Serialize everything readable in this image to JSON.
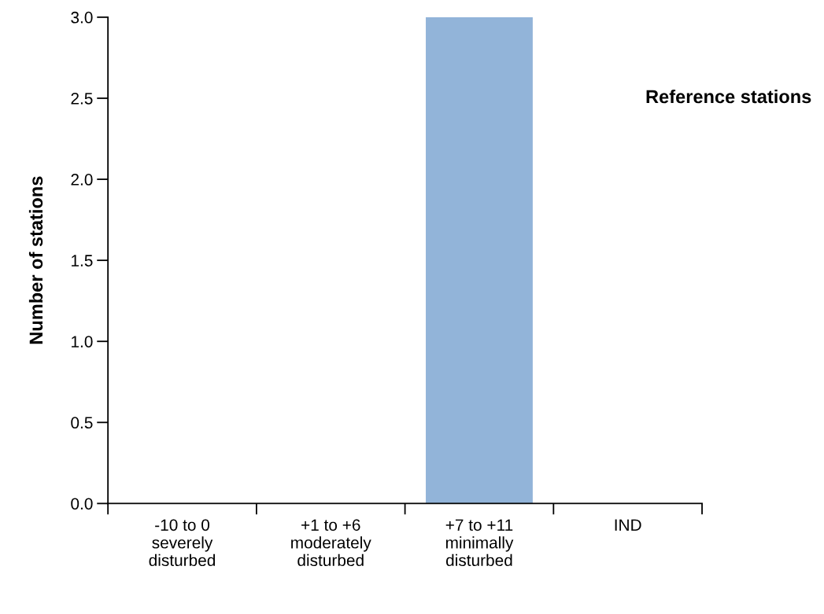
{
  "chart_data": {
    "type": "bar",
    "categories": [
      "-10 to 0\nseverely\ndisturbed",
      "+1 to +6\nmoderately\ndisturbed",
      "+7 to +11\nminimally\ndisturbed",
      "IND"
    ],
    "values": [
      0,
      0,
      3,
      0
    ],
    "color": "#92b4d9",
    "ylabel": "Number of stations",
    "ylim": [
      0,
      3
    ],
    "yticks": [
      {
        "value": 0,
        "label": "0.0"
      },
      {
        "value": 0.5,
        "label": "0.5"
      },
      {
        "value": 1,
        "label": "1.0"
      },
      {
        "value": 1.5,
        "label": "1.5"
      },
      {
        "value": 2,
        "label": "2.0"
      },
      {
        "value": 2.5,
        "label": "2.5"
      },
      {
        "value": 3,
        "label": "3.0"
      }
    ],
    "annotations": [
      "Reference stations"
    ],
    "grid": false,
    "legend": false
  }
}
